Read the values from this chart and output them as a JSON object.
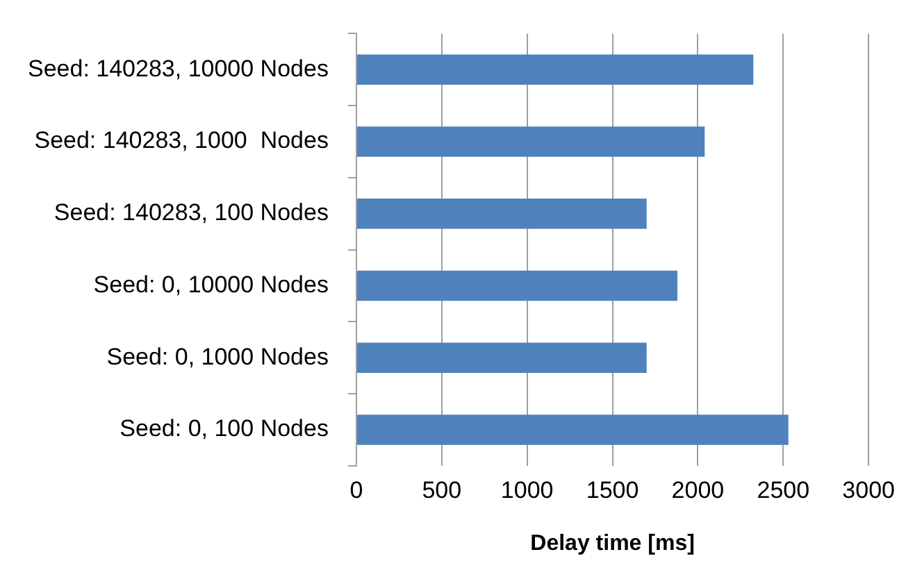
{
  "chart_data": {
    "type": "bar",
    "orientation": "horizontal",
    "xlabel": "Delay time [ms]",
    "categories": [
      "Seed: 140283, 10000 Nodes",
      "Seed: 140283, 1000  Nodes",
      "Seed: 140283, 100 Nodes",
      "Seed: 0, 10000 Nodes",
      "Seed: 0, 1000 Nodes",
      "Seed: 0, 100 Nodes"
    ],
    "values": [
      2325,
      2040,
      1700,
      1880,
      1700,
      2530
    ],
    "color": "#4f81bd",
    "xlim": [
      0,
      3000
    ],
    "xticks": [
      0,
      500,
      1000,
      1500,
      2000,
      2500,
      3000
    ],
    "grid": "x",
    "legend": false
  }
}
